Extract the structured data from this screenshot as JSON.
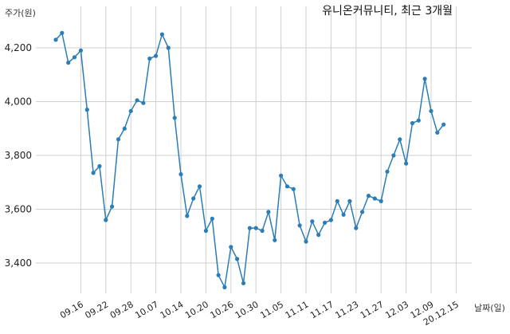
{
  "chart_data": {
    "type": "line",
    "title": "유니온커뮤니티, 최근 3개월",
    "xlabel": "날짜(일)",
    "ylabel": "주가(원)",
    "ylim": [
      3260,
      4310
    ],
    "yticks": [
      3400,
      3600,
      3800,
      4000,
      4200
    ],
    "ytick_labels": [
      "3,400",
      "3,600",
      "3,800",
      "4,000",
      "4,200"
    ],
    "xtick_labels": [
      "09.16",
      "09.22",
      "09.28",
      "10.07",
      "10.14",
      "10.20",
      "10.26",
      "10.30",
      "11.05",
      "11.11",
      "11.17",
      "11.23",
      "11.27",
      "12.03",
      "12.09",
      "20.12.15"
    ],
    "xtick_index": [
      4,
      8,
      12,
      16,
      20,
      24,
      28,
      32,
      36,
      40,
      44,
      48,
      52,
      56,
      60,
      64
    ],
    "grid": true,
    "color": "#2a7db5",
    "series": [
      {
        "values": [
          4230,
          4255,
          4145,
          4165,
          4190,
          3970,
          3735,
          3760,
          3560,
          3610,
          3860,
          3900,
          3965,
          4005,
          3995,
          4160,
          4170,
          4250,
          4200,
          3940,
          3730,
          3575,
          3640,
          3685,
          3520,
          3565,
          3355,
          3310,
          3460,
          3415,
          3325,
          3530,
          3530,
          3520,
          3590,
          3485,
          3725,
          3685,
          3675,
          3540,
          3480,
          3555,
          3505,
          3550,
          3560,
          3630,
          3580,
          3630,
          3530,
          3590,
          3650,
          3640,
          3630,
          3740,
          3800,
          3860,
          3770,
          3920,
          3930,
          4085,
          3965,
          3885,
          3915
        ]
      }
    ]
  }
}
